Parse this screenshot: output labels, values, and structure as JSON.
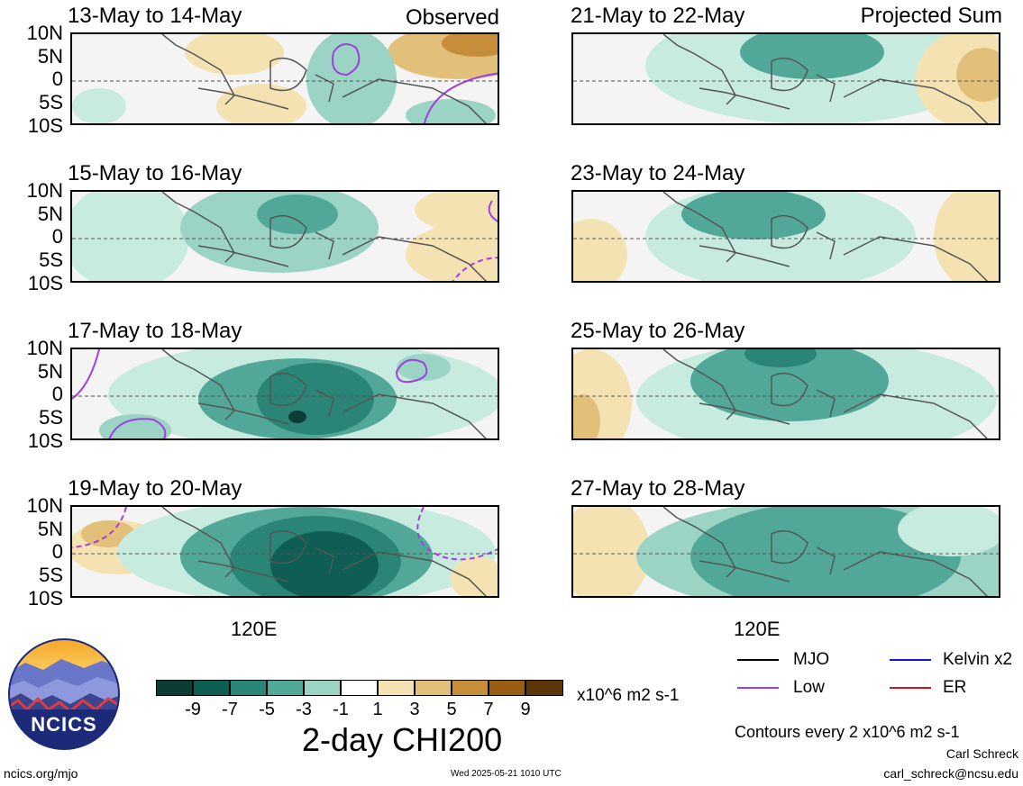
{
  "panels": [
    {
      "title": "13-May to 14-May",
      "tag": "Observed"
    },
    {
      "title": "15-May to 16-May",
      "tag": ""
    },
    {
      "title": "17-May to 18-May",
      "tag": ""
    },
    {
      "title": "19-May to 20-May",
      "tag": ""
    },
    {
      "title": "21-May to 22-May",
      "tag": "Projected Sum"
    },
    {
      "title": "23-May to 24-May",
      "tag": ""
    },
    {
      "title": "25-May to 26-May",
      "tag": ""
    },
    {
      "title": "27-May to 28-May",
      "tag": ""
    }
  ],
  "lat_labels": [
    "10N",
    "5N",
    "0",
    "5S",
    "10S"
  ],
  "lon_label": "120E",
  "colorbar": {
    "title": "2-day CHI200",
    "units": "x10^6 m2 s-1",
    "ticks": [
      "-9",
      "-7",
      "-5",
      "-3",
      "-1",
      "1",
      "3",
      "5",
      "7",
      "9"
    ],
    "colors": [
      "#0b3d35",
      "#0e5e54",
      "#2a8577",
      "#52a898",
      "#9bd3c4",
      "#ffffff",
      "#f5e2b2",
      "#e2c07a",
      "#c68d3b",
      "#9a5d14",
      "#5c3608"
    ]
  },
  "legend": {
    "items": [
      {
        "label": "MJO",
        "color": "#000000"
      },
      {
        "label": "Kelvin x2",
        "color": "#1414d2"
      },
      {
        "label": "Low",
        "color": "#a040e0"
      },
      {
        "label": "ER",
        "color": "#d21414"
      }
    ],
    "contours_note": "Contours every 2 x10^6 m2 s-1"
  },
  "logo_text": "NCICS",
  "footer": {
    "site": "ncics.org/mjo",
    "timestamp": "Wed 2025-05-21 1010 UTC",
    "author": "Carl Schreck",
    "email": "carl_schreck@ncsu.edu"
  }
}
